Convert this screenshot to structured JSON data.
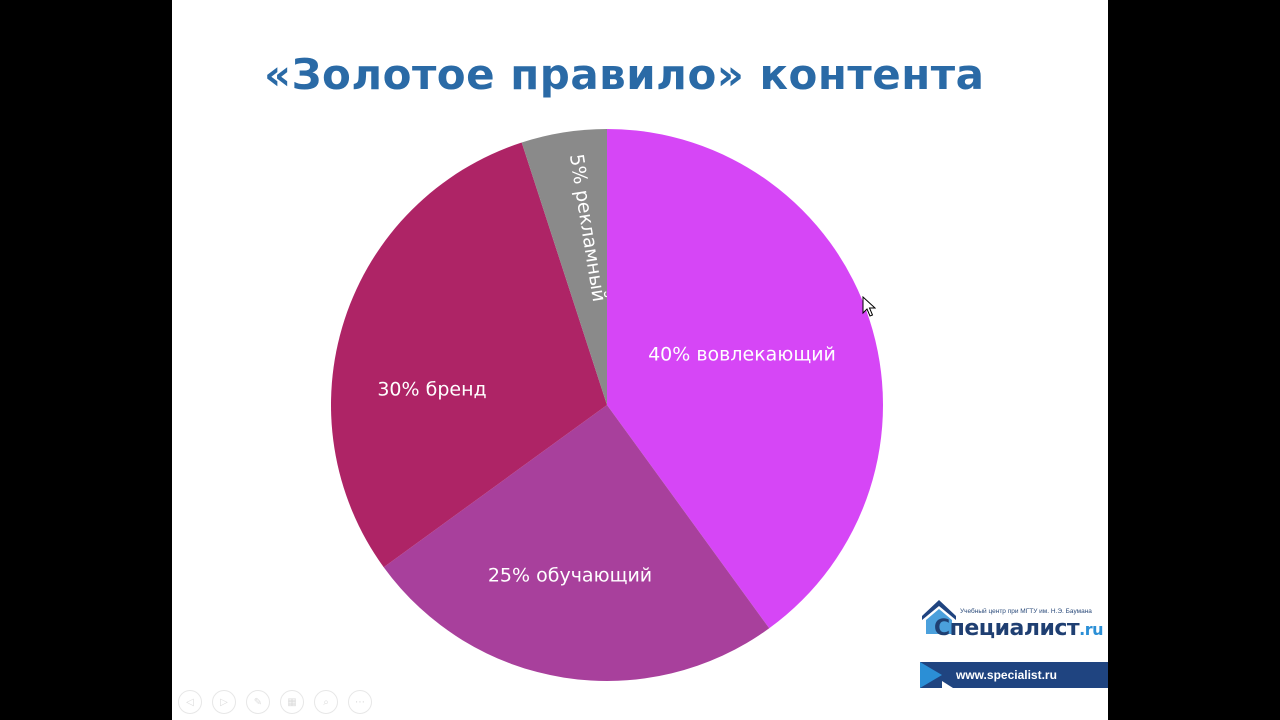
{
  "slide": {
    "title": "«Золотое правило» контента"
  },
  "chart_data": {
    "type": "pie",
    "title": "«Золотое правило» контента",
    "categories": [
      "вовлекающий",
      "обучающий",
      "бренд",
      "рекламный"
    ],
    "values": [
      40,
      25,
      30,
      5
    ],
    "labels": [
      "40% вовлекающий",
      "25% обучающий",
      "30% бренд",
      "5% рекламный"
    ],
    "colors": [
      "#d646f6",
      "#a8409c",
      "#ae2466",
      "#8a8a8a"
    ],
    "label_orientation": [
      "horizontal",
      "horizontal",
      "horizontal",
      "radial"
    ]
  },
  "branding": {
    "logo_subtitle": "Учебный центр при МГТУ им. Н.Э. Баумана",
    "logo_name": "Специалист",
    "logo_tld": ".ru",
    "url": "www.specialist.ru",
    "accent_color": "#2b8fd6",
    "dark_color": "#1f4480"
  },
  "controls": [
    {
      "icon": "prev-icon",
      "glyph": "◁"
    },
    {
      "icon": "next-icon",
      "glyph": "▷"
    },
    {
      "icon": "pen-icon",
      "glyph": "✎"
    },
    {
      "icon": "slides-icon",
      "glyph": "▦"
    },
    {
      "icon": "zoom-icon",
      "glyph": "⌕"
    },
    {
      "icon": "more-icon",
      "glyph": "⋯"
    }
  ]
}
